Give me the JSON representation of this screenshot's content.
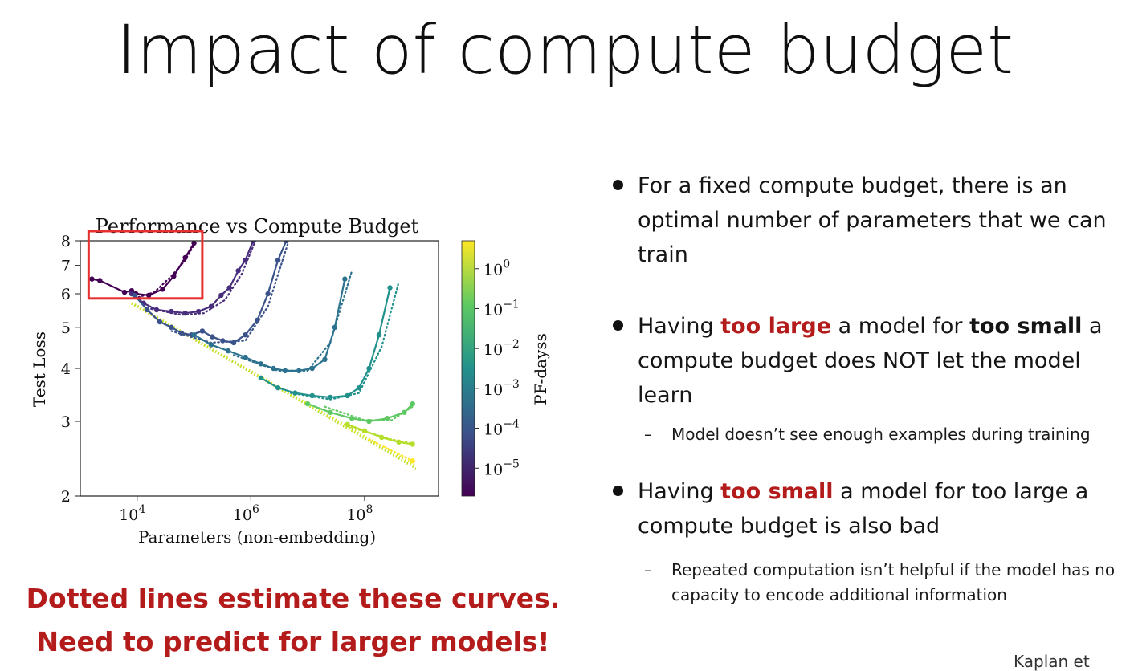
{
  "slide": {
    "title": "Impact of compute budget",
    "caption_line1": "Dotted lines estimate these curves.",
    "caption_line2": "Need to predict for larger models!",
    "footer_text": "Kaplan et",
    "colors": {
      "accent_red": "#b41c1c",
      "highlight_box": "#e53030"
    }
  },
  "bullets": {
    "b1": {
      "text": "For a fixed compute budget, there is an optimal number of parameters that we can train"
    },
    "b2": {
      "pre": "Having ",
      "hl1": "too large",
      "mid": " a model for ",
      "hl2": "too small",
      "post": " a compute budget does NOT let the model learn",
      "sub": "Model doesn’t see enough examples during training"
    },
    "b3": {
      "pre": "Having ",
      "hl1": "too small",
      "post": " a model for too large a compute budget is also bad",
      "sub": "Repeated computation isn’t helpful if the model has no capacity to encode additional information"
    }
  },
  "chart_data": {
    "type": "line",
    "title": "Performance vs Compute Budget",
    "xlabel": "Parameters (non-embedding)",
    "ylabel": "Test Loss",
    "colorbar_label": "PF-dayss",
    "x_scale": "log",
    "y_scale": "log",
    "xlim": [
      1000,
      2000000000
    ],
    "ylim": [
      2,
      8
    ],
    "xticks": [
      {
        "value": 10000,
        "base": "10",
        "exp": "4"
      },
      {
        "value": 1000000,
        "base": "10",
        "exp": "6"
      },
      {
        "value": 100000000,
        "base": "10",
        "exp": "8"
      }
    ],
    "yticks": [
      2,
      3,
      4,
      5,
      6,
      7,
      8
    ],
    "colorbar_ticks": [
      {
        "value": 1,
        "base": "10",
        "exp": "0"
      },
      {
        "value": 0.1,
        "base": "10",
        "exp": "−1"
      },
      {
        "value": 0.01,
        "base": "10",
        "exp": "−2"
      },
      {
        "value": 0.001,
        "base": "10",
        "exp": "−3"
      },
      {
        "value": 0.0001,
        "base": "10",
        "exp": "−4"
      },
      {
        "value": 1e-05,
        "base": "10",
        "exp": "−5"
      }
    ],
    "colorbar_range": [
      2e-06,
      5
    ],
    "highlight_box": {
      "x": [
        1400,
        140000
      ],
      "y": [
        5.85,
        8
      ]
    },
    "series": [
      {
        "compute": 5e-06,
        "color": "#440154",
        "x": [
          1600,
          2200,
          6000,
          8000,
          9500,
          16000,
          28000,
          44000,
          70000,
          100000
        ],
        "y": [
          6.5,
          6.45,
          6.05,
          6.1,
          6.0,
          5.95,
          6.15,
          6.6,
          7.3,
          7.9
        ],
        "fit_x": [
          9000,
          20000,
          40000,
          70000,
          110000
        ],
        "fit_y": [
          5.85,
          6.05,
          6.6,
          7.2,
          8.0
        ]
      },
      {
        "compute": 4e-05,
        "color": "#472d7b",
        "x": [
          8000,
          13000,
          22000,
          40000,
          70000,
          120000,
          200000,
          300000,
          420000,
          600000,
          800000,
          1100000
        ],
        "y": [
          6.0,
          5.7,
          5.5,
          5.45,
          5.4,
          5.45,
          5.6,
          5.95,
          6.2,
          6.8,
          7.2,
          8.0
        ],
        "fit_x": [
          15000,
          60000,
          150000,
          350000,
          700000,
          1200000
        ],
        "fit_y": [
          5.55,
          5.35,
          5.4,
          5.8,
          6.7,
          8.0
        ]
      },
      {
        "compute": 0.0002,
        "color": "#3b528b",
        "x": [
          9000,
          15000,
          25000,
          40000,
          60000,
          90000,
          140000,
          210000,
          320000,
          500000,
          800000,
          1300000,
          2000000,
          3000000,
          4200000
        ],
        "y": [
          5.95,
          5.5,
          5.15,
          5.0,
          4.85,
          4.8,
          4.9,
          4.75,
          4.65,
          4.6,
          4.8,
          5.2,
          6.0,
          7.2,
          8.0
        ],
        "fit_x": [
          40000,
          200000,
          800000,
          2000000,
          4500000
        ],
        "fit_y": [
          4.9,
          4.6,
          4.65,
          5.6,
          7.9
        ]
      },
      {
        "compute": 0.002,
        "color": "#2c728e",
        "x": [
          100000,
          200000,
          400000,
          800000,
          1500000,
          2500000,
          4000000,
          7000000,
          12000000,
          20000000,
          30000000,
          45000000
        ],
        "y": [
          4.8,
          4.55,
          4.4,
          4.25,
          4.1,
          4.0,
          3.95,
          3.95,
          4.0,
          4.2,
          5.0,
          6.5
        ],
        "fit_x": [
          500000,
          3000000,
          10000000,
          25000000,
          60000000
        ],
        "fit_y": [
          4.3,
          3.95,
          3.95,
          4.6,
          6.8
        ]
      },
      {
        "compute": 0.02,
        "color": "#21918c",
        "x": [
          1500000,
          3000000,
          6000000,
          12000000,
          25000000,
          50000000,
          80000000,
          120000000,
          180000000,
          280000000
        ],
        "y": [
          3.8,
          3.6,
          3.5,
          3.45,
          3.42,
          3.45,
          3.6,
          4.0,
          4.8,
          6.2
        ],
        "fit_x": [
          5000000,
          25000000,
          80000000,
          200000000,
          400000000
        ],
        "fit_y": [
          3.5,
          3.38,
          3.5,
          4.5,
          6.4
        ]
      },
      {
        "compute": 0.2,
        "color": "#5ec962",
        "x": [
          10000000,
          25000000,
          60000000,
          120000000,
          250000000,
          500000000,
          700000000
        ],
        "y": [
          3.3,
          3.15,
          3.05,
          3.0,
          3.05,
          3.15,
          3.3
        ],
        "fit_x": [
          20000000,
          100000000,
          300000000,
          700000000
        ],
        "fit_y": [
          3.25,
          3.02,
          3.02,
          3.25
        ]
      },
      {
        "compute": 2.0,
        "color": "#b5de2b",
        "x": [
          50000000,
          100000000,
          200000000,
          400000000,
          700000000
        ],
        "y": [
          2.95,
          2.85,
          2.75,
          2.68,
          2.65
        ],
        "fit_x": [
          50000000,
          300000000,
          700000000
        ],
        "fit_y": [
          2.92,
          2.72,
          2.66
        ]
      },
      {
        "compute": 5.0,
        "color": "#fde725",
        "x": [
          700000000
        ],
        "y": [
          2.42
        ],
        "fit_x": [
          120000000,
          700000000
        ],
        "fit_y": [
          2.72,
          2.42
        ]
      }
    ],
    "envelope": {
      "x": [
        8000,
        800000000
      ],
      "y": [
        5.7,
        2.35
      ]
    }
  }
}
